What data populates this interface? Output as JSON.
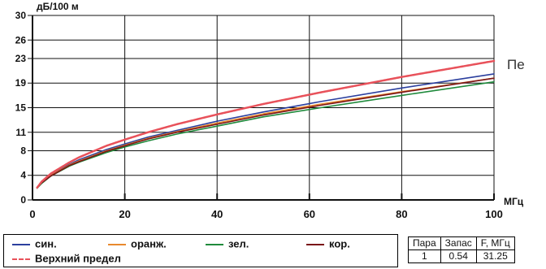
{
  "chart_data": {
    "type": "line",
    "title": "",
    "ylabel": "дБ/100 м",
    "xlabel": "МГц",
    "xlim": [
      0,
      100
    ],
    "ylim": [
      0,
      30
    ],
    "x_ticks": [
      0,
      20,
      40,
      60,
      80,
      100
    ],
    "y_ticks": [
      0,
      4,
      8,
      11,
      15,
      19,
      23,
      26,
      30
    ],
    "grid": true,
    "legend_placement": "bottom",
    "x": [
      1,
      2,
      4,
      8,
      10,
      16,
      20,
      25,
      31.25,
      40,
      50,
      62.5,
      80,
      100
    ],
    "series": [
      {
        "name": "син.",
        "color": "#2b3f9e",
        "values": [
          2.0,
          2.9,
          4.1,
          5.8,
          6.5,
          8.2,
          9.1,
          10.2,
          11.3,
          12.8,
          14.3,
          16.0,
          18.2,
          20.5
        ]
      },
      {
        "name": "оранж.",
        "color": "#e8892e",
        "values": [
          2.0,
          2.8,
          4.0,
          5.7,
          6.3,
          8.0,
          8.9,
          10.0,
          11.1,
          12.5,
          14.0,
          15.6,
          17.6,
          19.8
        ]
      },
      {
        "name": "зел.",
        "color": "#1f8a3c",
        "values": [
          1.9,
          2.7,
          3.9,
          5.5,
          6.1,
          7.7,
          8.6,
          9.6,
          10.7,
          12.0,
          13.5,
          15.0,
          17.0,
          19.2
        ]
      },
      {
        "name": "кор.",
        "color": "#7a1518",
        "values": [
          2.0,
          2.8,
          3.9,
          5.6,
          6.2,
          7.9,
          8.8,
          9.9,
          11.0,
          12.3,
          13.8,
          15.4,
          17.5,
          19.8
        ]
      },
      {
        "name": "Верхний предел",
        "color": "#e8515a",
        "dashed": true,
        "values": [
          2.0,
          3.0,
          4.3,
          6.1,
          6.9,
          8.8,
          9.8,
          11.0,
          12.3,
          13.9,
          15.6,
          17.5,
          20.0,
          22.6
        ]
      }
    ]
  },
  "side_text": "Пе",
  "info_table": {
    "headers": [
      "Пара",
      "Запас",
      "F, МГц"
    ],
    "row": [
      "1",
      "0.54",
      "31.25"
    ]
  }
}
